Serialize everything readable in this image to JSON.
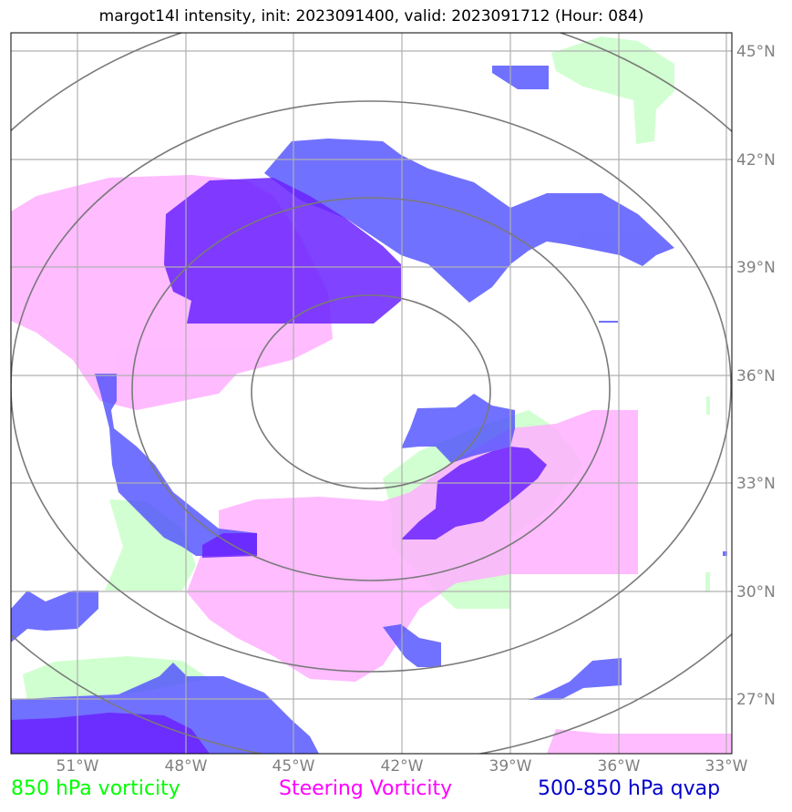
{
  "title": "margot14l intensity, init: 2023091400, valid: 2023091712 (Hour: 084)",
  "map": {
    "lon_range": [
      -52.8,
      -32.8
    ],
    "lat_range": [
      25.5,
      45.5
    ],
    "lon_ticks": [
      "51°W",
      "48°W",
      "45°W",
      "42°W",
      "39°W",
      "36°W",
      "33°W"
    ],
    "lat_ticks": [
      "45°N",
      "42°N",
      "39°N",
      "36°N",
      "33°N",
      "30°N",
      "27°N"
    ],
    "storm_center": {
      "lon": -42.9,
      "lat": 35.6
    },
    "range_rings": 4
  },
  "colors": {
    "vorticity_850": "#ccffcc",
    "steering_vorticity": "#ffaaff",
    "qvap": "#4444ff",
    "qvap_strong": "#6a1bff",
    "rings": "#808080",
    "grid": "#b0b0b0"
  },
  "legend": {
    "green": "850 hPa vorticity",
    "magenta": "Steering Vorticity",
    "blue": "500-850 hPa qvap"
  },
  "legend_colors": {
    "green": "#00ff00",
    "magenta": "#ff00ff",
    "blue": "#0000cc"
  }
}
